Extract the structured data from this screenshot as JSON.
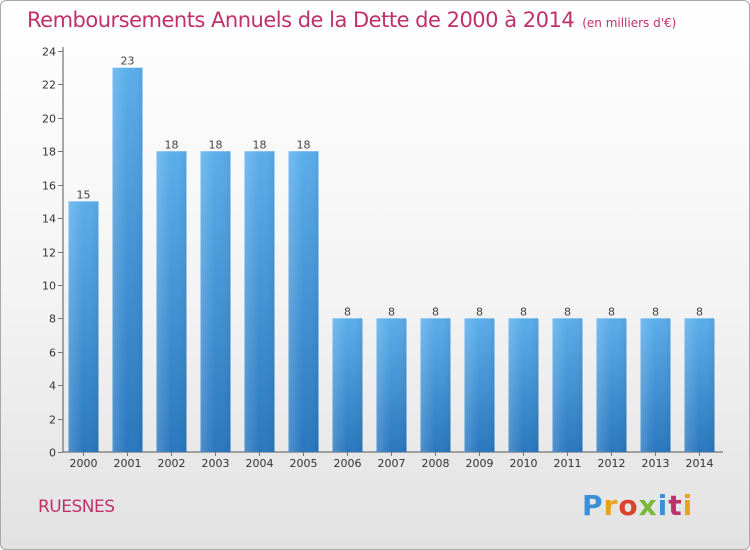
{
  "header": {
    "title": "Remboursements Annuels de la Dette de 2000 à 2014",
    "subtitle": "(en milliers d'€)"
  },
  "footer": {
    "commune": "RUESNES",
    "logo": "Proxiti",
    "logo_colors": [
      "#3a8fd6",
      "#e8a21c",
      "#d9442b",
      "#7ab83b",
      "#3a8fd6",
      "#c0306a",
      "#e8a21c"
    ]
  },
  "colors": {
    "accent": "#c0306a",
    "bar_top": "#5aaeea",
    "bar_bottom": "#2a77bf",
    "axis": "#555555",
    "grid_tick": "#777777"
  },
  "chart_data": {
    "type": "bar",
    "categories": [
      "2000",
      "2001",
      "2002",
      "2003",
      "2004",
      "2005",
      "2006",
      "2007",
      "2008",
      "2009",
      "2010",
      "2011",
      "2012",
      "2013",
      "2014"
    ],
    "values": [
      15,
      23,
      18,
      18,
      18,
      18,
      8,
      8,
      8,
      8,
      8,
      8,
      8,
      8,
      8
    ],
    "title": "Remboursements Annuels de la Dette de 2000 à 2014",
    "xlabel": "",
    "ylabel": "",
    "ylim": [
      0,
      24
    ],
    "yticks": [
      0,
      2,
      4,
      6,
      8,
      10,
      12,
      14,
      16,
      18,
      20,
      22,
      24
    ],
    "grid": false,
    "legend": "none"
  }
}
